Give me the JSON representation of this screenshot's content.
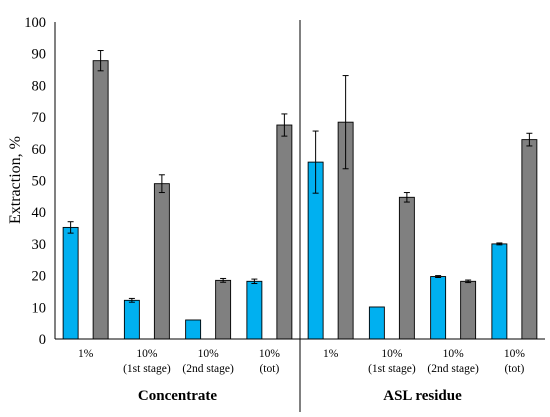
{
  "chart_data": {
    "type": "bar",
    "ylabel": "Extraction, %",
    "ylim": [
      0,
      100
    ],
    "yticks": [
      0,
      10,
      20,
      30,
      40,
      50,
      60,
      70,
      80,
      90,
      100
    ],
    "grid": false,
    "legend": "none",
    "colors": [
      "#00b0f0",
      "#808080"
    ],
    "groups": [
      {
        "label": "Concentrate",
        "categories": [
          {
            "lines": [
              "1%"
            ]
          },
          {
            "lines": [
              "10%",
              "(1st stage)"
            ]
          },
          {
            "lines": [
              "10%",
              "(2nd stage)"
            ]
          },
          {
            "lines": [
              "10%",
              "(tot)"
            ]
          }
        ],
        "series": [
          {
            "values": [
              35.2,
              12.2,
              6.0,
              18.2
            ],
            "errors": [
              1.8,
              0.6,
              0.0,
              0.7
            ]
          },
          {
            "values": [
              87.8,
              49.0,
              18.5,
              67.5
            ],
            "errors": [
              3.2,
              2.8,
              0.6,
              3.5
            ]
          }
        ]
      },
      {
        "label": "ASL residue",
        "categories": [
          {
            "lines": [
              "1%"
            ]
          },
          {
            "lines": [
              "10%",
              "(1st stage)"
            ]
          },
          {
            "lines": [
              "10%",
              "(2nd stage)"
            ]
          },
          {
            "lines": [
              "10%",
              "(tot)"
            ]
          }
        ],
        "series": [
          {
            "values": [
              55.8,
              10.1,
              19.7,
              30.0
            ],
            "errors": [
              9.8,
              0.0,
              0.3,
              0.3
            ]
          },
          {
            "values": [
              68.4,
              44.7,
              18.2,
              62.9
            ],
            "errors": [
              14.7,
              1.5,
              0.4,
              2.0
            ]
          }
        ]
      }
    ]
  }
}
